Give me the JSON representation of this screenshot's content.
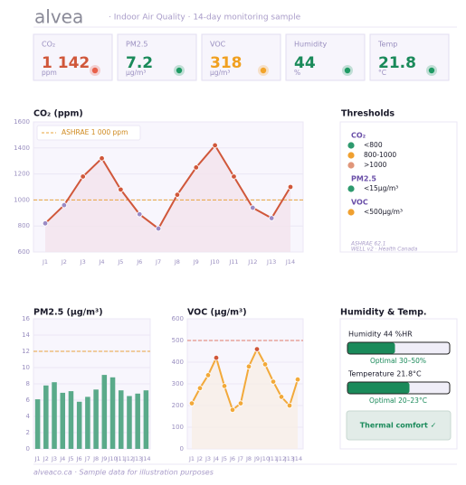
{
  "header": {
    "brand": "alvea",
    "subtitle": "· Indoor Air Quality · 14-day monitoring sample"
  },
  "kpis": [
    {
      "label": "CO₂",
      "value": "1 142",
      "unit": "ppm",
      "color": "#d0573a",
      "status_color": "#e8604a"
    },
    {
      "label": "PM2.5",
      "value": 7.2,
      "unit": "µg/m³",
      "color": "#1a8a5a",
      "status_color": "#1f9a64"
    },
    {
      "label": "VOC",
      "value": 318,
      "unit": "µg/m³",
      "color": "#f0a020",
      "status_color": "#f2a42a"
    },
    {
      "label": "Humidity",
      "value": 44,
      "unit": "%",
      "color": "#1a8a5a",
      "status_color": "#1f9a64"
    },
    {
      "label": "Temp",
      "value": 21.8,
      "unit": "°C",
      "color": "#1a8a5a",
      "status_color": "#1f9a64"
    }
  ],
  "chart_data": [
    {
      "type": "line",
      "title": "CO₂  (ppm)",
      "categories": [
        "J1",
        "J2",
        "J3",
        "J4",
        "J5",
        "J6",
        "J7",
        "J8",
        "J9",
        "J10",
        "J11",
        "J12",
        "J13",
        "J14"
      ],
      "values": [
        820,
        960,
        1180,
        1320,
        1080,
        890,
        780,
        1040,
        1250,
        1420,
        1180,
        940,
        860,
        1100
      ],
      "color": "#d0573a",
      "area_color": "#f3e4ec",
      "marker_colors": [
        "#9b8ac4",
        "#9b8ac4",
        "#d0573a",
        "#d0573a",
        "#d0573a",
        "#9b8ac4",
        "#9b8ac4",
        "#d0573a",
        "#d0573a",
        "#d0573a",
        "#d0573a",
        "#9b8ac4",
        "#9b8ac4",
        "#d0573a"
      ],
      "reference": {
        "value": 1000,
        "label": "ASHRAE  1 000 ppm",
        "color": "#e8a33d"
      },
      "ylim": [
        600,
        1600
      ],
      "yticks": [
        600,
        800,
        1000,
        1200,
        1400,
        1600
      ],
      "grid": true
    },
    {
      "type": "bar",
      "title": "PM2.5  (µg/m³)",
      "categories": [
        "J1",
        "J2",
        "J3",
        "J4",
        "J5",
        "J6",
        "J7",
        "J8",
        "J9",
        "J10",
        "J11",
        "J12",
        "J13",
        "J14"
      ],
      "values": [
        6.1,
        7.8,
        8.2,
        6.9,
        7.1,
        5.8,
        6.4,
        7.3,
        9.1,
        8.8,
        7.2,
        6.5,
        6.8,
        7.2
      ],
      "color": "#5aaa8a",
      "reference": {
        "value": 12,
        "color": "#e8a33d"
      },
      "ylim": [
        0,
        16
      ],
      "yticks": [
        0,
        2,
        4,
        6,
        8,
        10,
        12,
        14,
        16
      ],
      "grid": true
    },
    {
      "type": "line",
      "title": "VOC  (µg/m³)",
      "categories": [
        "J1",
        "J2",
        "J3",
        "J4",
        "J5",
        "J6",
        "J7",
        "J8",
        "J9",
        "J10",
        "J11",
        "J12",
        "J13",
        "J14"
      ],
      "values": [
        210,
        280,
        340,
        420,
        290,
        180,
        210,
        380,
        460,
        390,
        310,
        240,
        200,
        320
      ],
      "color": "#f2a93a",
      "area_color": "#f8efe6",
      "marker_colors": [
        "#f2a93a",
        "#f2a93a",
        "#f2a93a",
        "#d0573a",
        "#f2a93a",
        "#f2a93a",
        "#f2a93a",
        "#f2a93a",
        "#d0573a",
        "#f2a93a",
        "#f2a93a",
        "#f2a93a",
        "#f2a93a",
        "#f2a93a"
      ],
      "reference": {
        "value": 500,
        "color": "#e07a6a"
      },
      "ylim": [
        0,
        600
      ],
      "yticks": [
        0,
        100,
        200,
        300,
        400,
        500,
        600
      ],
      "grid": true
    }
  ],
  "thresholds": {
    "title": "Thresholds",
    "groups": [
      {
        "title": "CO₂",
        "items": [
          {
            "label": "<800",
            "color": "#2e9a6e"
          },
          {
            "label": "800-1000",
            "color": "#f0a030"
          },
          {
            "label": ">1000",
            "color": "#e0967a"
          }
        ]
      },
      {
        "title": "PM2.5",
        "items": [
          {
            "label": "<15µg/m³",
            "color": "#2e9a6e"
          }
        ]
      },
      {
        "title": "VOC",
        "items": [
          {
            "label": "<500µg/m³",
            "color": "#f0a030"
          }
        ]
      }
    ],
    "note": [
      "ASHRAE 62.1",
      "WELL v2 · Health Canada"
    ]
  },
  "comfort": {
    "title": "Humidity & Temp.",
    "rows": [
      {
        "label": "Humidity  44 %HR",
        "optimal": "Optimal 30–50%"
      },
      {
        "label": "Temperature  21.8°C",
        "optimal": "Optimal 20–23°C"
      }
    ],
    "badge": "Thermal comfort  ✓"
  },
  "footer": "alveaco.ca  ·  Sample data for illustration purposes"
}
